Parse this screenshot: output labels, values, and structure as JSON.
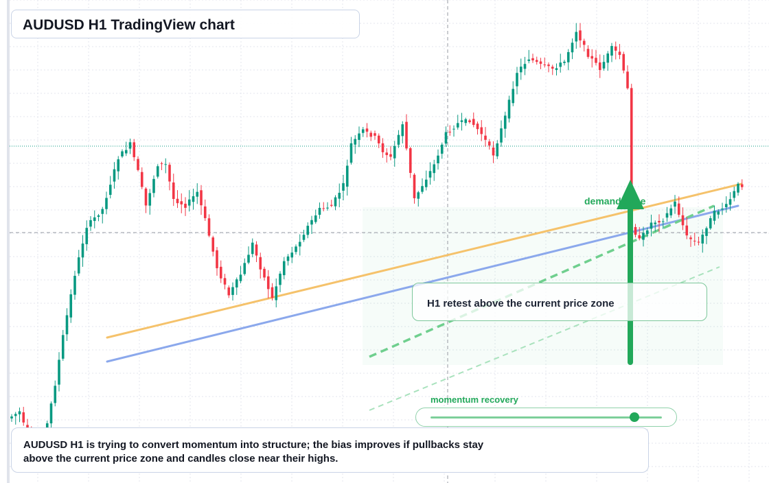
{
  "title": "AUDUSD H1 TradingView chart",
  "zone_label": "demand zone",
  "callout_text": "H1 retest above the current price zone",
  "meter": {
    "label": "momentum recovery",
    "level": 0.88
  },
  "note_text": "AUDUSD H1 is trying to convert momentum into structure; the bias improves if pullbacks stay above the current price zone and candles close near their highs.",
  "colors": {
    "up": "#089981",
    "down": "#f23645",
    "accent": "#22a85a",
    "orange_trend": "#f5c26b",
    "blue_trend": "#8ba8ec",
    "grid": "#e3e6ee"
  },
  "chart_data": {
    "type": "candlestick",
    "symbol": "AUDUSD",
    "timeframe": "H1",
    "y_range": [
      0,
      704
    ],
    "anchors": [
      [
        0,
        610
      ],
      [
        3,
        600
      ],
      [
        6,
        655
      ],
      [
        8,
        660
      ],
      [
        10,
        618
      ],
      [
        12,
        560
      ],
      [
        14,
        490
      ],
      [
        17,
        400
      ],
      [
        20,
        330
      ],
      [
        24,
        305
      ],
      [
        28,
        230
      ],
      [
        31,
        210
      ],
      [
        33,
        250
      ],
      [
        35,
        300
      ],
      [
        38,
        240
      ],
      [
        40,
        240
      ],
      [
        42,
        290
      ],
      [
        45,
        300
      ],
      [
        48,
        280
      ],
      [
        50,
        320
      ],
      [
        53,
        390
      ],
      [
        56,
        430
      ],
      [
        59,
        400
      ],
      [
        62,
        355
      ],
      [
        64,
        390
      ],
      [
        67,
        435
      ],
      [
        70,
        380
      ],
      [
        73,
        360
      ],
      [
        76,
        330
      ],
      [
        79,
        305
      ],
      [
        82,
        300
      ],
      [
        85,
        270
      ],
      [
        87,
        210
      ],
      [
        90,
        190
      ],
      [
        93,
        200
      ],
      [
        95,
        220
      ],
      [
        97,
        230
      ],
      [
        100,
        180
      ],
      [
        103,
        290
      ],
      [
        106,
        260
      ],
      [
        108,
        240
      ],
      [
        111,
        195
      ],
      [
        114,
        180
      ],
      [
        117,
        175
      ],
      [
        120,
        195
      ],
      [
        123,
        225
      ],
      [
        126,
        170
      ],
      [
        129,
        105
      ],
      [
        132,
        85
      ],
      [
        135,
        95
      ],
      [
        138,
        100
      ],
      [
        141,
        90
      ],
      [
        144,
        45
      ],
      [
        147,
        80
      ],
      [
        150,
        100
      ],
      [
        153,
        70
      ],
      [
        155,
        80
      ],
      [
        157,
        130
      ],
      [
        158,
        330
      ],
      [
        160,
        350
      ],
      [
        163,
        325
      ],
      [
        166,
        320
      ],
      [
        169,
        295
      ],
      [
        172,
        345
      ],
      [
        175,
        355
      ],
      [
        177,
        330
      ],
      [
        179,
        310
      ],
      [
        182,
        300
      ],
      [
        185,
        270
      ]
    ],
    "trendlines": [
      {
        "name": "orange",
        "from": [
          156,
          492
        ],
        "to": [
          1080,
          268
        ]
      },
      {
        "name": "blue",
        "from": [
          156,
          527
        ],
        "to": [
          1075,
          300
        ]
      }
    ]
  }
}
